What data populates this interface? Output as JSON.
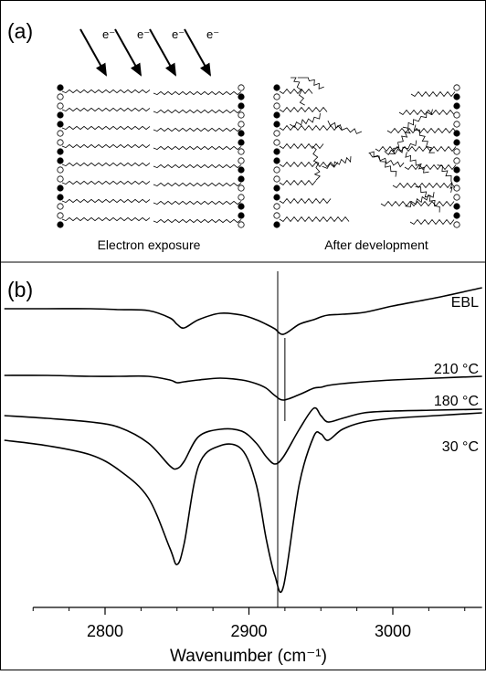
{
  "panel_a": {
    "label": "(a)",
    "electrons": [
      "e⁻",
      "e⁻",
      "e⁻",
      "e⁻"
    ],
    "left_caption": "Electron exposure",
    "right_caption": "After development"
  },
  "chart_data": {
    "type": "line",
    "panel_label": "(b)",
    "xlabel": "Wavenumber (cm⁻¹)",
    "x": [
      2730,
      2760,
      2790,
      2810,
      2830,
      2845,
      2850,
      2855,
      2865,
      2880,
      2895,
      2905,
      2912,
      2918,
      2924,
      2935,
      2945,
      2950,
      2955,
      2965,
      2980,
      3000,
      3030,
      3062
    ],
    "series": [
      {
        "name": "EBL",
        "color": "#000000",
        "values": [
          327,
          327,
          327,
          326,
          325,
          317,
          310,
          306,
          315,
          322,
          320,
          315,
          310,
          305,
          299,
          310,
          315,
          318,
          320,
          321,
          323,
          330,
          339,
          350
        ]
      },
      {
        "name": "210 °C",
        "color": "#000000",
        "values": [
          254,
          254,
          253,
          253,
          253,
          249,
          246,
          247,
          249,
          251,
          249,
          245,
          240,
          232,
          227,
          233,
          240,
          241,
          243,
          245,
          247,
          249,
          251,
          253
        ]
      },
      {
        "name": "180 °C",
        "color": "#000000",
        "values": [
          210,
          207,
          203,
          197,
          180,
          155,
          152,
          160,
          187,
          195,
          193,
          180,
          165,
          157,
          165,
          195,
          218,
          210,
          203,
          207,
          213,
          215,
          216,
          217
        ]
      },
      {
        "name": "30 °C",
        "color": "#000000",
        "values": [
          183,
          177,
          167,
          150,
          120,
          65,
          47,
          70,
          155,
          177,
          173,
          135,
          75,
          35,
          23,
          135,
          187,
          190,
          183,
          195,
          203,
          207,
          210,
          213
        ]
      }
    ],
    "xlim": [
      2730,
      3062
    ],
    "ylim": [
      0,
      380
    ],
    "xticks": [
      2800,
      2900,
      3000
    ],
    "xminor_ticks": [
      2750,
      2775,
      2825,
      2850,
      2875,
      2925,
      2950,
      2975,
      3025,
      3050
    ],
    "vlines": [
      2920,
      2925
    ]
  }
}
